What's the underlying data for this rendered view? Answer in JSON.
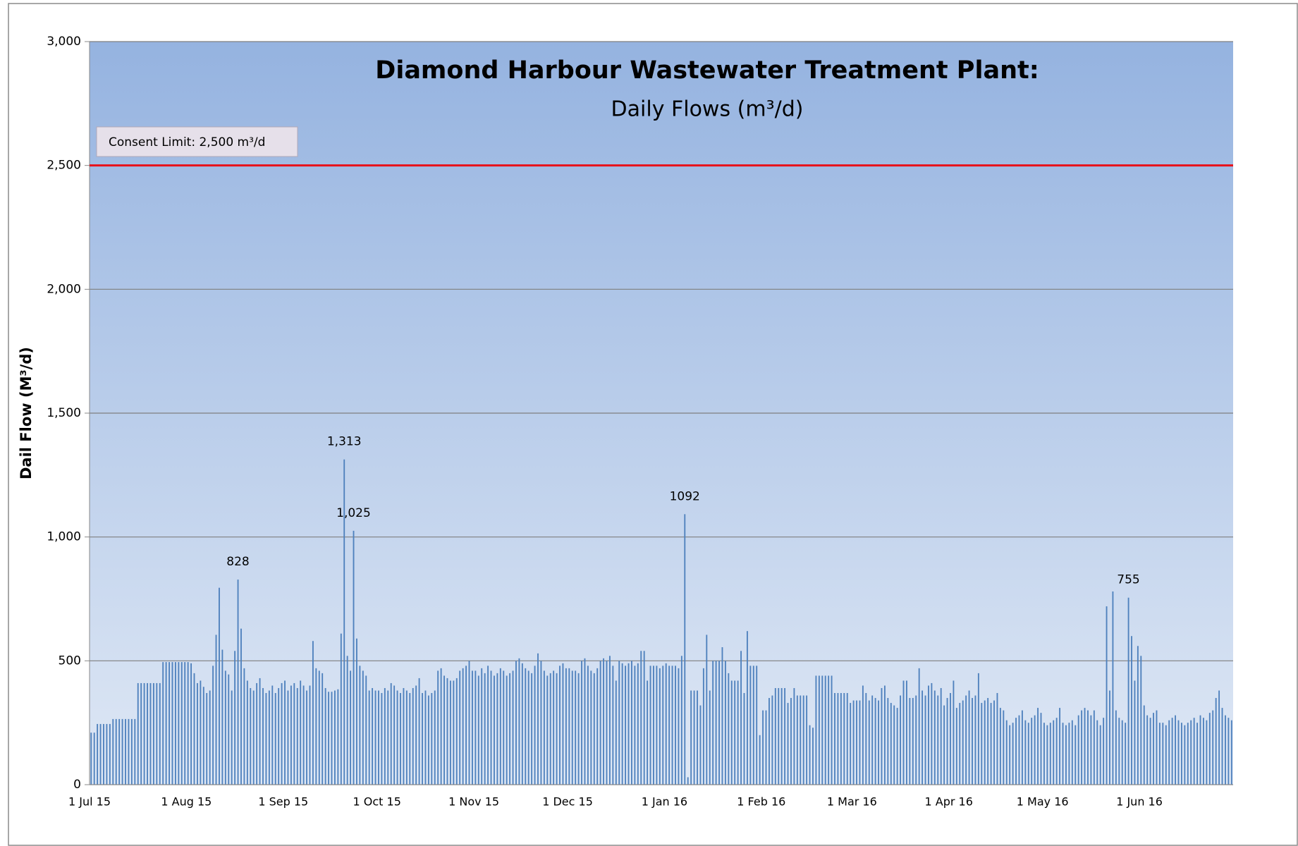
{
  "chart_data": {
    "type": "bar",
    "title": "Diamond Harbour Wastewater Treatment Plant:",
    "subtitle": "Daily Flows (m³/d)",
    "y_label": "Dail Flow (M³/d)",
    "color": "#4f81bd",
    "grid": true,
    "ylim": [
      0,
      3000
    ],
    "yticks": [
      0,
      500,
      {
        "value": 1000,
        "label": "1,000"
      },
      {
        "value": 1500,
        "label": "1,500"
      },
      {
        "value": 2000,
        "label": "2,000"
      },
      {
        "value": 2500,
        "label": "2,500"
      },
      {
        "value": 3000,
        "label": "3,000"
      }
    ],
    "reference_line": {
      "value": 2500,
      "label": "Consent Limit:  2,500 m³/d",
      "color": "#e8101a"
    },
    "annotations": [
      {
        "label": "828",
        "value": 828
      },
      {
        "label": "1,313",
        "value": 1313
      },
      {
        "label": "1,025",
        "value": 1025
      },
      {
        "label": "1092",
        "value": 1092
      },
      {
        "label": "755",
        "value": 755
      }
    ],
    "categories": [
      "1 Jul 15",
      null,
      null,
      null,
      null,
      null,
      null,
      null,
      null,
      null,
      null,
      null,
      null,
      null,
      null,
      null,
      null,
      null,
      null,
      null,
      null,
      null,
      null,
      null,
      null,
      null,
      null,
      null,
      null,
      null,
      null,
      "1 Aug 15",
      null,
      null,
      null,
      null,
      null,
      null,
      null,
      null,
      null,
      null,
      null,
      null,
      null,
      null,
      null,
      null,
      null,
      null,
      null,
      null,
      null,
      null,
      null,
      null,
      null,
      null,
      null,
      null,
      null,
      null,
      "1 Sep 15",
      null,
      null,
      null,
      null,
      null,
      null,
      null,
      null,
      null,
      null,
      null,
      null,
      null,
      null,
      null,
      null,
      null,
      null,
      null,
      null,
      null,
      null,
      null,
      null,
      null,
      null,
      null,
      null,
      null,
      "1 Oct 15",
      null,
      null,
      null,
      null,
      null,
      null,
      null,
      null,
      null,
      null,
      null,
      null,
      null,
      null,
      null,
      null,
      null,
      null,
      null,
      null,
      null,
      null,
      null,
      null,
      null,
      null,
      null,
      null,
      null,
      null,
      "1 Nov 15",
      null,
      null,
      null,
      null,
      null,
      null,
      null,
      null,
      null,
      null,
      null,
      null,
      null,
      null,
      null,
      null,
      null,
      null,
      null,
      null,
      null,
      null,
      null,
      null,
      null,
      null,
      null,
      null,
      null,
      "1 Dec 15",
      null,
      null,
      null,
      null,
      null,
      null,
      null,
      null,
      null,
      null,
      null,
      null,
      null,
      null,
      null,
      null,
      null,
      null,
      null,
      null,
      null,
      null,
      null,
      null,
      null,
      null,
      null,
      null,
      null,
      null,
      "1 Jan 16",
      null,
      null,
      null,
      null,
      null,
      null,
      null,
      null,
      null,
      null,
      null,
      null,
      null,
      null,
      null,
      null,
      null,
      null,
      null,
      null,
      null,
      null,
      null,
      null,
      null,
      null,
      null,
      null,
      null,
      null,
      "1 Feb 16",
      null,
      null,
      null,
      null,
      null,
      null,
      null,
      null,
      null,
      null,
      null,
      null,
      null,
      null,
      null,
      null,
      null,
      null,
      null,
      null,
      null,
      null,
      null,
      null,
      null,
      null,
      null,
      null,
      "1 Mar 16",
      null,
      null,
      null,
      null,
      null,
      null,
      null,
      null,
      null,
      null,
      null,
      null,
      null,
      null,
      null,
      null,
      null,
      null,
      null,
      null,
      null,
      null,
      null,
      null,
      null,
      null,
      null,
      null,
      null,
      null,
      "1 Apr 16",
      null,
      null,
      null,
      null,
      null,
      null,
      null,
      null,
      null,
      null,
      null,
      null,
      null,
      null,
      null,
      null,
      null,
      null,
      null,
      null,
      null,
      null,
      null,
      null,
      null,
      null,
      null,
      null,
      null,
      "1 May 16",
      null,
      null,
      null,
      null,
      null,
      null,
      null,
      null,
      null,
      null,
      null,
      null,
      null,
      null,
      null,
      null,
      null,
      null,
      null,
      null,
      null,
      null,
      null,
      null,
      null,
      null,
      null,
      null,
      null,
      null,
      "1 Jun 16",
      null,
      null,
      null,
      null,
      null,
      null,
      null,
      null,
      null,
      null,
      null,
      null,
      null,
      null,
      null,
      null,
      null,
      null,
      null,
      null,
      null,
      null,
      null,
      null,
      null,
      null,
      null,
      null,
      null
    ],
    "values": [
      210,
      210,
      245,
      245,
      245,
      245,
      245,
      265,
      265,
      265,
      265,
      265,
      265,
      265,
      265,
      410,
      410,
      410,
      410,
      410,
      410,
      410,
      410,
      495,
      495,
      495,
      495,
      495,
      495,
      495,
      495,
      495,
      490,
      450,
      410,
      420,
      395,
      370,
      380,
      480,
      605,
      795,
      545,
      460,
      445,
      380,
      540,
      828,
      630,
      470,
      420,
      390,
      380,
      410,
      430,
      390,
      370,
      380,
      400,
      370,
      390,
      410,
      420,
      380,
      400,
      410,
      390,
      420,
      400,
      380,
      400,
      580,
      470,
      460,
      450,
      390,
      375,
      375,
      380,
      385,
      610,
      1313,
      520,
      460,
      1025,
      590,
      480,
      460,
      440,
      380,
      390,
      380,
      380,
      370,
      390,
      380,
      410,
      400,
      380,
      370,
      390,
      380,
      370,
      390,
      400,
      430,
      370,
      380,
      360,
      370,
      380,
      460,
      470,
      440,
      430,
      420,
      420,
      430,
      460,
      470,
      480,
      500,
      460,
      460,
      440,
      470,
      450,
      480,
      460,
      440,
      450,
      470,
      460,
      440,
      450,
      460,
      500,
      510,
      490,
      470,
      460,
      450,
      480,
      530,
      500,
      460,
      440,
      450,
      460,
      450,
      480,
      490,
      470,
      470,
      460,
      460,
      450,
      500,
      510,
      480,
      460,
      450,
      470,
      500,
      510,
      500,
      520,
      480,
      420,
      500,
      490,
      480,
      490,
      500,
      480,
      490,
      540,
      540,
      420,
      480,
      480,
      480,
      470,
      480,
      490,
      480,
      480,
      480,
      470,
      520,
      1092,
      30,
      380,
      380,
      380,
      320,
      470,
      605,
      380,
      500,
      500,
      500,
      555,
      500,
      450,
      420,
      420,
      420,
      540,
      370,
      620,
      480,
      480,
      480,
      200,
      300,
      300,
      350,
      360,
      390,
      390,
      390,
      390,
      330,
      350,
      390,
      360,
      360,
      360,
      360,
      240,
      230,
      440,
      440,
      440,
      440,
      440,
      440,
      370,
      370,
      370,
      370,
      370,
      330,
      340,
      340,
      340,
      400,
      370,
      340,
      360,
      350,
      340,
      390,
      400,
      350,
      330,
      320,
      310,
      360,
      420,
      420,
      350,
      350,
      360,
      470,
      380,
      360,
      400,
      410,
      380,
      360,
      390,
      320,
      350,
      370,
      420,
      310,
      330,
      340,
      360,
      380,
      350,
      360,
      450,
      330,
      340,
      350,
      330,
      340,
      370,
      310,
      300,
      260,
      240,
      250,
      270,
      280,
      300,
      260,
      250,
      270,
      280,
      310,
      290,
      250,
      240,
      250,
      260,
      270,
      310,
      250,
      240,
      250,
      260,
      240,
      280,
      300,
      310,
      300,
      280,
      300,
      260,
      240,
      270,
      720,
      380,
      780,
      300,
      270,
      260,
      250,
      755,
      600,
      420,
      560,
      520,
      320,
      280,
      270,
      290,
      300,
      250,
      250,
      240,
      260,
      270,
      280,
      260,
      250,
      240,
      250,
      260,
      270,
      250,
      280,
      270,
      260,
      290,
      300,
      350,
      380,
      310,
      280,
      270,
      260
    ]
  }
}
